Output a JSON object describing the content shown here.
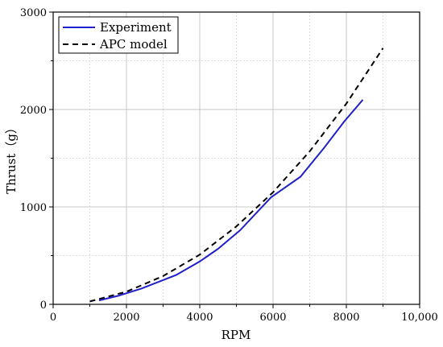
{
  "chart_data": {
    "type": "line",
    "title": "",
    "xlabel": "RPM",
    "ylabel": "Thrust（g）",
    "xlim": [
      0,
      10000
    ],
    "ylim": [
      0,
      3000
    ],
    "x_ticks": [
      0,
      2000,
      4000,
      6000,
      8000,
      10000
    ],
    "x_tick_labels": [
      "0",
      "2000",
      "4000",
      "6000",
      "8000",
      "10,000"
    ],
    "y_ticks": [
      0,
      1000,
      2000,
      3000
    ],
    "y_tick_labels": [
      "0",
      "1000",
      "2000",
      "3000"
    ],
    "grid": true,
    "legend_position": "top-left",
    "series": [
      {
        "name": "Experiment",
        "style": "solid",
        "color": "#1f1fcc",
        "x": [
          1250,
          1800,
          2400,
          3350,
          4000,
          4500,
          5100,
          5950,
          6750,
          7400,
          7950,
          8450
        ],
        "y": [
          40,
          90,
          160,
          300,
          440,
          570,
          760,
          1100,
          1310,
          1610,
          1880,
          2100
        ]
      },
      {
        "name": "APC model",
        "style": "dashed",
        "color": "#000000",
        "x": [
          1000,
          2000,
          3000,
          4000,
          5000,
          6000,
          7000,
          8000,
          9000
        ],
        "y": [
          30,
          130,
          290,
          510,
          800,
          1150,
          1570,
          2060,
          2630
        ]
      }
    ]
  }
}
